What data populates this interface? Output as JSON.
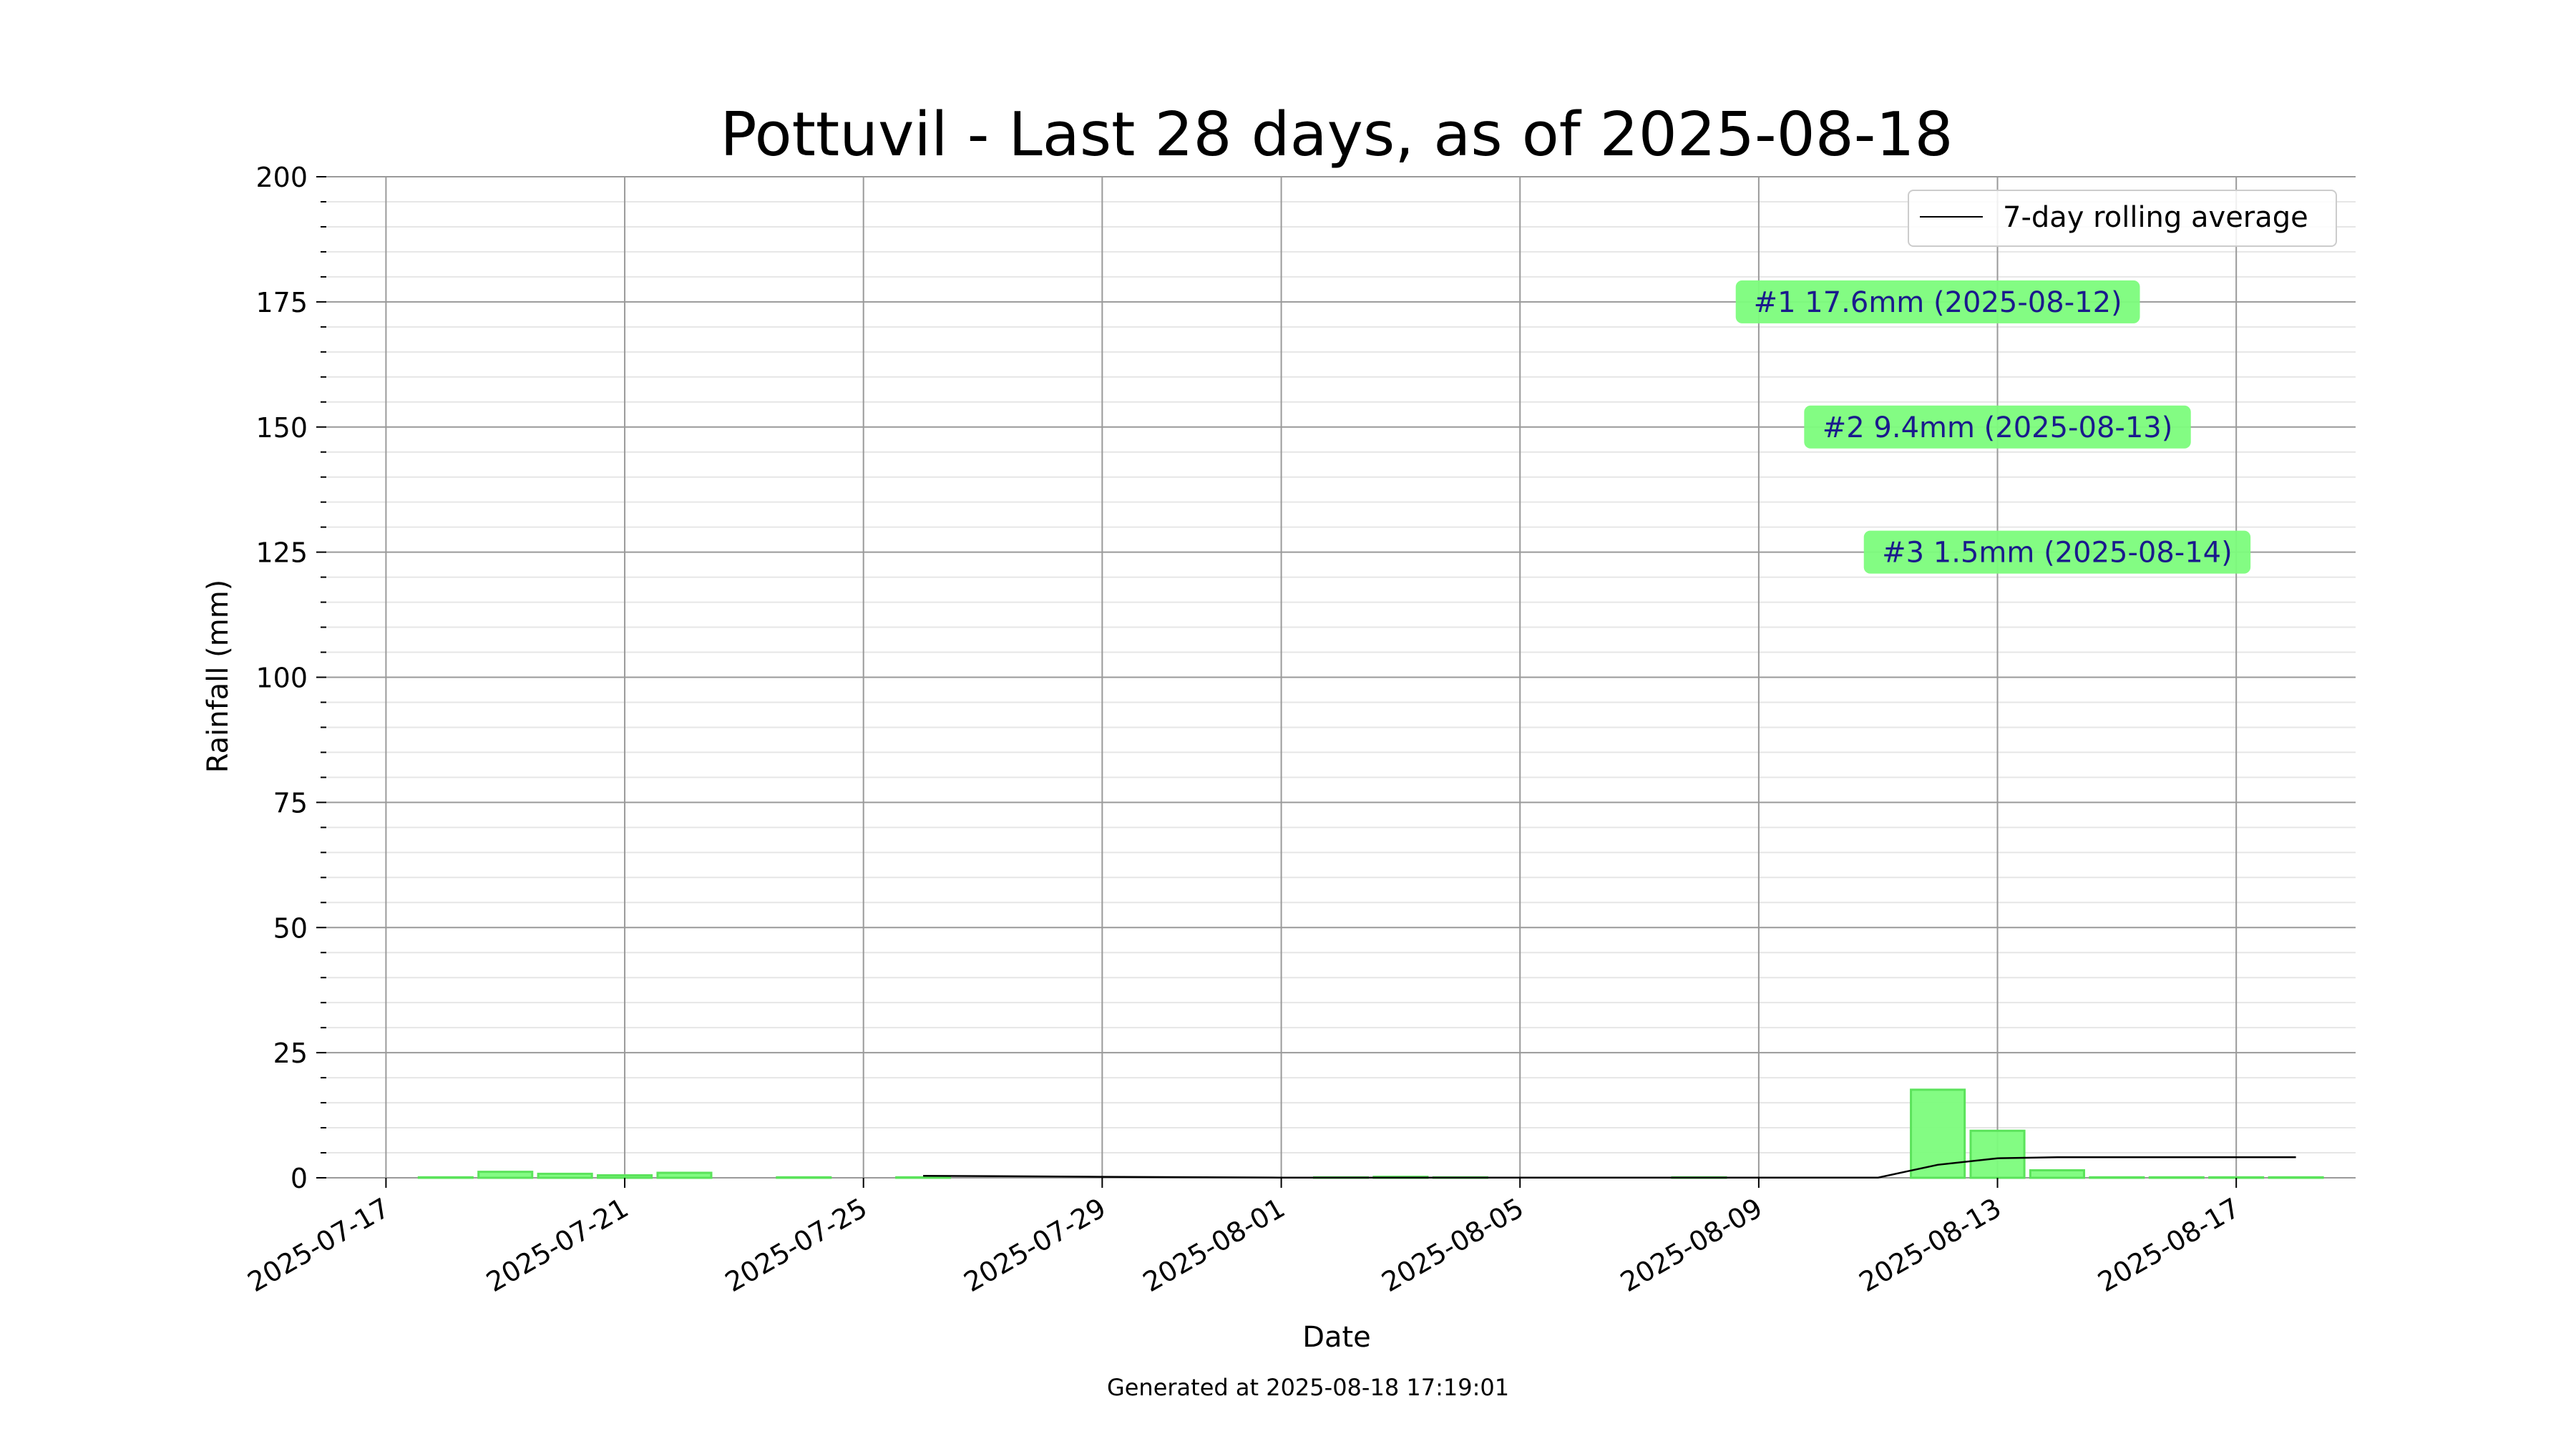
{
  "chart_data": {
    "type": "bar",
    "title": "Pottuvil - Last 28 days, as of 2025-08-18",
    "xlabel": "Date",
    "ylabel": "Rainfall (mm)",
    "ylim": [
      0,
      200
    ],
    "yticks": [
      0,
      25,
      50,
      75,
      100,
      125,
      150,
      175,
      200
    ],
    "xlim": [
      "2025-07-16",
      "2025-08-19"
    ],
    "xticks": [
      "2025-07-17",
      "2025-07-21",
      "2025-07-25",
      "2025-07-29",
      "2025-08-01",
      "2025-08-05",
      "2025-08-09",
      "2025-08-13",
      "2025-08-17"
    ],
    "grid": true,
    "bar_color": "#7CFC7C",
    "bar_edge_color": "#5BE35B",
    "line_color": "#000000",
    "series": [
      {
        "type": "bar",
        "x": [
          "2025-07-18",
          "2025-07-19",
          "2025-07-20",
          "2025-07-21",
          "2025-07-22",
          "2025-07-23",
          "2025-07-24",
          "2025-07-25",
          "2025-07-26",
          "2025-07-27",
          "2025-07-28",
          "2025-07-29",
          "2025-07-30",
          "2025-07-31",
          "2025-08-01",
          "2025-08-02",
          "2025-08-03",
          "2025-08-04",
          "2025-08-05",
          "2025-08-06",
          "2025-08-07",
          "2025-08-08",
          "2025-08-09",
          "2025-08-10",
          "2025-08-11",
          "2025-08-12",
          "2025-08-13",
          "2025-08-14",
          "2025-08-15",
          "2025-08-16",
          "2025-08-17",
          "2025-08-18"
        ],
        "values": [
          0.1,
          1.2,
          0.8,
          0.5,
          1.0,
          0,
          0.1,
          0,
          0.1,
          0,
          0,
          0,
          0,
          0,
          0,
          0.1,
          0.2,
          0.1,
          0,
          0,
          0,
          0.1,
          0,
          0,
          0,
          17.6,
          9.4,
          1.5,
          0.1,
          0.1,
          0.1,
          0.1
        ]
      },
      {
        "type": "line",
        "name": "7-day rolling average",
        "x": [
          "2025-07-26",
          "2025-07-29",
          "2025-08-01",
          "2025-08-05",
          "2025-08-09",
          "2025-08-11",
          "2025-08-12",
          "2025-08-13",
          "2025-08-14",
          "2025-08-15",
          "2025-08-16",
          "2025-08-17",
          "2025-08-18"
        ],
        "values": [
          0.4,
          0.2,
          0.05,
          0.05,
          0.05,
          0.05,
          2.6,
          3.9,
          4.1,
          4.1,
          4.1,
          4.1,
          4.1
        ]
      }
    ],
    "legend": {
      "entries": [
        "7-day rolling average"
      ],
      "location": "top-right"
    },
    "annotations": [
      {
        "text": "#1 17.6mm (2025-08-12)",
        "x": "2025-08-12",
        "y": 175,
        "bg": "#7CFC7C",
        "color": "#1a1a8c"
      },
      {
        "text": "#2 9.4mm (2025-08-13)",
        "x": "2025-08-13",
        "y": 150,
        "bg": "#7CFC7C",
        "color": "#1a1a8c"
      },
      {
        "text": "#3 1.5mm (2025-08-14)",
        "x": "2025-08-14",
        "y": 125,
        "bg": "#7CFC7C",
        "color": "#1a1a8c"
      }
    ],
    "footer": "Generated at 2025-08-18 17:19:01"
  }
}
